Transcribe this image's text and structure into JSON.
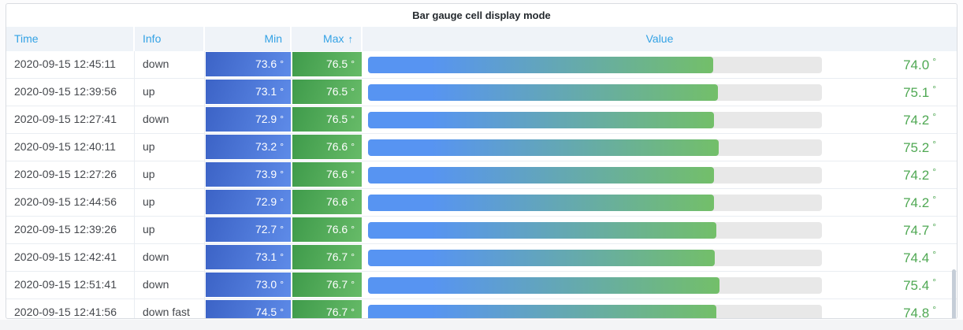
{
  "panel": {
    "title": "Bar gauge cell display mode"
  },
  "columns": [
    {
      "label": "Time",
      "align": "left"
    },
    {
      "label": "Info",
      "align": "left"
    },
    {
      "label": "Min",
      "align": "right"
    },
    {
      "label": "Max",
      "align": "right",
      "sort_indicator": "↑"
    },
    {
      "label": "Value",
      "align": "center"
    }
  ],
  "unit": "°",
  "rows": [
    {
      "time": "2020-09-15 12:45:11",
      "info": "down",
      "min": "73.6",
      "max": "76.5",
      "value": "74.0"
    },
    {
      "time": "2020-09-15 12:39:56",
      "info": "up",
      "min": "73.1",
      "max": "76.5",
      "value": "75.1"
    },
    {
      "time": "2020-09-15 12:27:41",
      "info": "down",
      "min": "72.9",
      "max": "76.5",
      "value": "74.2"
    },
    {
      "time": "2020-09-15 12:40:11",
      "info": "up",
      "min": "73.2",
      "max": "76.6",
      "value": "75.2"
    },
    {
      "time": "2020-09-15 12:27:26",
      "info": "up",
      "min": "73.9",
      "max": "76.6",
      "value": "74.2"
    },
    {
      "time": "2020-09-15 12:44:56",
      "info": "up",
      "min": "72.9",
      "max": "76.6",
      "value": "74.2"
    },
    {
      "time": "2020-09-15 12:39:26",
      "info": "up",
      "min": "72.7",
      "max": "76.6",
      "value": "74.7"
    },
    {
      "time": "2020-09-15 12:42:41",
      "info": "down",
      "min": "73.1",
      "max": "76.7",
      "value": "74.4"
    },
    {
      "time": "2020-09-15 12:51:41",
      "info": "down",
      "min": "73.0",
      "max": "76.7",
      "value": "75.4"
    },
    {
      "time": "2020-09-15 12:41:56",
      "info": "down fast",
      "min": "74.5",
      "max": "76.7",
      "value": "74.8"
    }
  ],
  "chart_data": {
    "type": "table",
    "title": "Bar gauge cell display mode",
    "columns": [
      "Time",
      "Info",
      "Min",
      "Max",
      "Value"
    ],
    "unit": "°",
    "sorted_by": {
      "column": "Max",
      "direction": "ascending"
    },
    "value_display": "bar-gauge-with-text",
    "approx_gauge_range": [
      0,
      97.4
    ],
    "rows": [
      [
        "2020-09-15 12:45:11",
        "down",
        73.6,
        76.5,
        74.0
      ],
      [
        "2020-09-15 12:39:56",
        "up",
        73.1,
        76.5,
        75.1
      ],
      [
        "2020-09-15 12:27:41",
        "down",
        72.9,
        76.5,
        74.2
      ],
      [
        "2020-09-15 12:40:11",
        "up",
        73.2,
        76.6,
        75.2
      ],
      [
        "2020-09-15 12:27:26",
        "up",
        73.9,
        76.6,
        74.2
      ],
      [
        "2020-09-15 12:44:56",
        "up",
        72.9,
        76.6,
        74.2
      ],
      [
        "2020-09-15 12:39:26",
        "up",
        72.7,
        76.6,
        74.7
      ],
      [
        "2020-09-15 12:42:41",
        "down",
        73.1,
        76.7,
        74.4
      ],
      [
        "2020-09-15 12:51:41",
        "down",
        73.0,
        76.7,
        75.4
      ],
      [
        "2020-09-15 12:41:56",
        "down fast",
        74.5,
        76.7,
        74.8
      ]
    ]
  },
  "colors": {
    "title_text": "#24292E",
    "header_bg": "#EFF3F8",
    "header_text": "#33A2E5",
    "body_text": "#45484D",
    "row_border": "#E9EDF2",
    "panel_border": "#D9DCE1",
    "min_cell_gradient_start": "#3C63C6",
    "min_cell_gradient_end": "#5E8BE8",
    "max_cell_gradient_start": "#3F9B4B",
    "max_cell_gradient_end": "#67BB68",
    "bar_gradient_start": "#5794F2",
    "bar_gradient_end": "#73BF69",
    "bar_track": "#E8E8E8",
    "value_text": "#4FA853",
    "scroll_thumb": "#C5CDD7",
    "page_bg": "#FCFCFD",
    "strip_bg": "#F3F4F6"
  }
}
